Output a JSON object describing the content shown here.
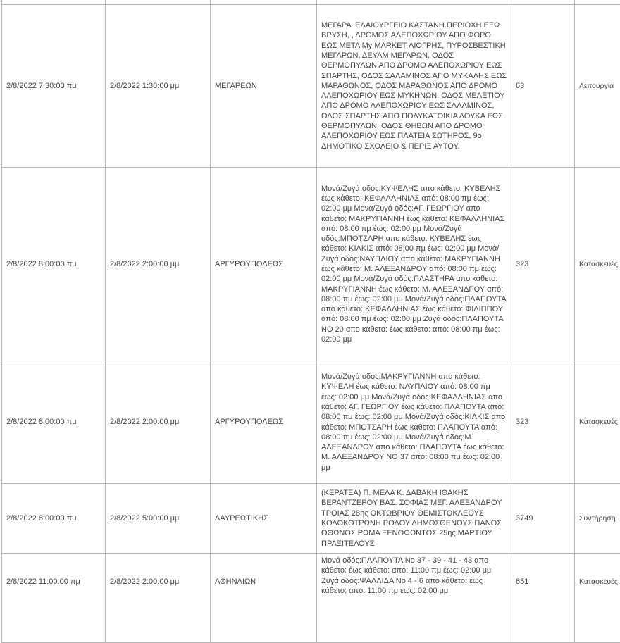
{
  "rows": [
    {
      "start": "2/8/2022 7:30:00 πμ",
      "end": "2/8/2022 1:30:00 μμ",
      "municipality": "ΜΕΓΑΡΕΩΝ",
      "description": "ΜΕΓΑΡΑ .ΕΛΑΙΟΥΡΓΕΙΟ ΚΑΣΤΑΝΗ.ΠΕΡΙΟΧΗ ΕΞΩ ΒΡΥΣΗ, , ΔΡΟΜΟΣ ΑΛΕΠΟΧΩΡΙΟΥ ΑΠΟ ΦΟΡΟ ΕΩΣ ΜΕΤΑ My MARKET ΛΙΟΓΡΗΣ, ΠΥΡΟΣΒΕΣΤΙΚΗ ΜΕΓΑΡΩΝ, ΔΕΥΑΜ ΜΕΓΑΡΩΝ, ΟΔΟΣ ΘΕΡΜΟΠΥΛΩΝ ΑΠΟ ΔΡΟΜΟ ΑΛΕΠΟΧΩΡΙΟΥ ΕΩΣ ΣΠΑΡΤΗΣ, ΟΔΟΣ ΣΑΛΑΜΙΝΟΣ ΑΠΟ ΜΥΚΑΛΗΣ ΕΩΣ ΜΑΡΑΘΩΝΟΣ, ΟΔΟΣ ΜΑΡΑΘΩΝΟΣ ΑΠΟ ΔΡΟΜΟ ΑΛΕΠΟΧΩΡΙΟΥ ΕΩΣ ΜΥΚΗΝΩΝ, ΟΔΟΣ ΜΕΛΕΤΙΟΥ ΑΠΟ ΔΡΟΜΟ ΑΛΕΠΟΧΩΡΙΟΥ ΕΩΣ ΣΑΛΑΜΙΝΟΣ, ΟΔΟΣ ΣΠΑΡΤΗΣ ΑΠΟ ΠΟΛΥΚΑΤΟΙΚΙΑ ΛΟΥΚΑ ΕΩΣ ΘΕΡΜΟΠΥΛΩΝ, ΟΔΟΣ ΘΗΒΩΝ ΑΠΟ ΔΡΟΜΟ ΑΛΕΠΟΧΩΡΙΟΥ ΕΩΣ ΠΛΑΤΕΙΑ ΣΩΤΗΡΟΣ, 9ο ΔΗΜΟΤΙΚΟ ΣΧΟΛΕΙΟ & ΠΕΡΙΞ ΑΥΤΟΥ.",
      "number": "63",
      "type": "Λειτουργία"
    },
    {
      "start": "2/8/2022 8:00:00 πμ",
      "end": "2/8/2022 2:00:00 μμ",
      "municipality": "ΑΡΓΥΡΟΥΠΟΛΕΩΣ",
      "description": "Μονά/Ζυγά οδός:ΚΥΨΕΛΗΣ απο κάθετο: ΚΥΒΕΛΗΣ έως κάθετο: ΚΕΦΑΛΛΗΝΙΑΣ από: 08:00 πμ έως: 02:00 μμ Μονά/Ζυγά οδός:ΑΓ. ΓΕΩΡΓΙΟΥ απο κάθετο: ΜΑΚΡΥΓΙΑΝΝΗ έως κάθετο: ΚΕΦΑΛΛΗΝΙΑΣ από: 08:00 πμ έως: 02:00 μμ Μονά/Ζυγά οδός:ΜΠΟΤΣΑΡΗ απο κάθετο: ΚΥΒΕΛΗΣ έως κάθετο: ΚΙΛΚΙΣ από: 08:00 πμ έως: 02:00 μμ Μονά/Ζυγά οδός:ΝΑΥΠΛΙΟΥ απο κάθετο: ΜΑΚΡΥΓΙΑΝΝΗ έως κάθετο: Μ. ΑΛΕΞΑΝΔΡΟΥ από: 08:00 πμ έως: 02:00 μμ Μονά/Ζυγά οδός:ΠΛΑΣΤΗΡΑ απο κάθετο: ΜΑΚΡΥΓΙΑΝΝΗ έως κάθετο: Μ. ΑΛΕΞΑΝΔΡΟΥ από: 08:00 πμ έως: 02:00 μμ Μονά/Ζυγά οδός:ΠΛΑΠΟΥΤΑ απο κάθετο: ΚΕΦΑΛΛΗΝΙΑΣ έως κάθετο: ΦΙΛΙΠΠΟΥ από: 08:00 πμ έως: 02:00 μμ Ζυγά οδός:ΠΛΑΠΟΥΤΑ ΝΟ 20 απο κάθετο: έως κάθετο: από: 08:00 πμ έως: 02:00 μμ",
      "number": "323",
      "type": "Κατασκευές"
    },
    {
      "start": "2/8/2022 8:00:00 πμ",
      "end": "2/8/2022 2:00:00 μμ",
      "municipality": "ΑΡΓΥΡΟΥΠΟΛΕΩΣ",
      "description": "Μονά/Ζυγά οδός:ΜΑΚΡΥΓΙΑΝΝΗ απο κάθετο: ΚΥΨΕΛΗ έως κάθετο: ΝΑΥΠΛΙΟΥ από: 08:00 πμ έως: 02:00 μμ Μονά/Ζυγά οδός:ΚΕΦΑΛΛΗΝΙΑΣ απο κάθετο: ΑΓ. ΓΕΩΡΓΙΟΥ έως κάθετο: ΠΛΑΠΟΥΤΑ από: 08:00 πμ έως: 02:00 μμ Μονά/Ζυγά οδός:ΚΙΛΚΙΣ απο κάθετο: ΜΠΟΤΣΑΡΗ έως κάθετο: ΠΛΑΠΟΥΤΑ από: 08:00 πμ έως: 02:00 μμ Μονά/Ζυγά οδός:Μ. ΑΛΕΞΑΝΔΡΟΥ απο κάθετο: ΠΛΑΠΟΥΤΑ έως κάθετο: Μ. ΑΛΕΞΑΝΔΡΟΥ ΝΟ 37 από: 08:00 πμ έως: 02:00 μμ",
      "number": "323",
      "type": "Κατασκευές"
    },
    {
      "start": "2/8/2022 8:00:00 πμ",
      "end": "2/8/2022 5:00:00 μμ",
      "municipality": "ΛΑΥΡΕΩΤΙΚΗΣ",
      "description": "(ΚΕΡΑΤΕΑ) Π. ΜΕΛΑ Κ. ΔΑΒΑΚΗ ΙΘΑΚΗΣ ΒΕΡΑΝΤΖΕΡΟΥ ΒΑΣ. ΣΟΦΙΑΣ ΜΕΓ. ΑΛΕΞΑΝΔΡΟΥ ΤΡΟΙΑΣ 28ης ΟΚΤΩΒΡΙΟΥ ΘΕΜΙΣΤΟΚΛΕΟΥΣ ΚΟΛΟΚΟΤΡΩΝΗ ΡΟΔΟΥ ΔΗΜΟΣΘΕΝΟΥΣ ΠΑΝΟΣ ΟΘΩΝΟΣ ΡΩΜΑ ΞΕΝΟΦΩΝΤΟΣ 25ης ΜΑΡΤΙΟΥ ΠΡΑΞΙΤΕΛΟΥΣ",
      "number": "3749",
      "type": "Συντήρηση"
    },
    {
      "start": "2/8/2022 11:00:00 πμ",
      "end": "2/8/2022 2:00:00 μμ",
      "municipality": "ΑΘΗΝΑΙΩΝ",
      "description": "Μονά οδός:ΠΛΑΠΟΥΤΑ Νο 37 - 39 - 41 - 43 απο κάθετο: έως κάθετο: από: 11:00 πμ έως: 02:00 μμ Ζυγά οδός:ΨΑΛΛΙΔΑ Νο 4 - 6 απο κάθετο: έως κάθετο: από: 11:00 πμ έως: 02:00 μμ",
      "number": "651",
      "type": "Κατασκευές"
    }
  ]
}
